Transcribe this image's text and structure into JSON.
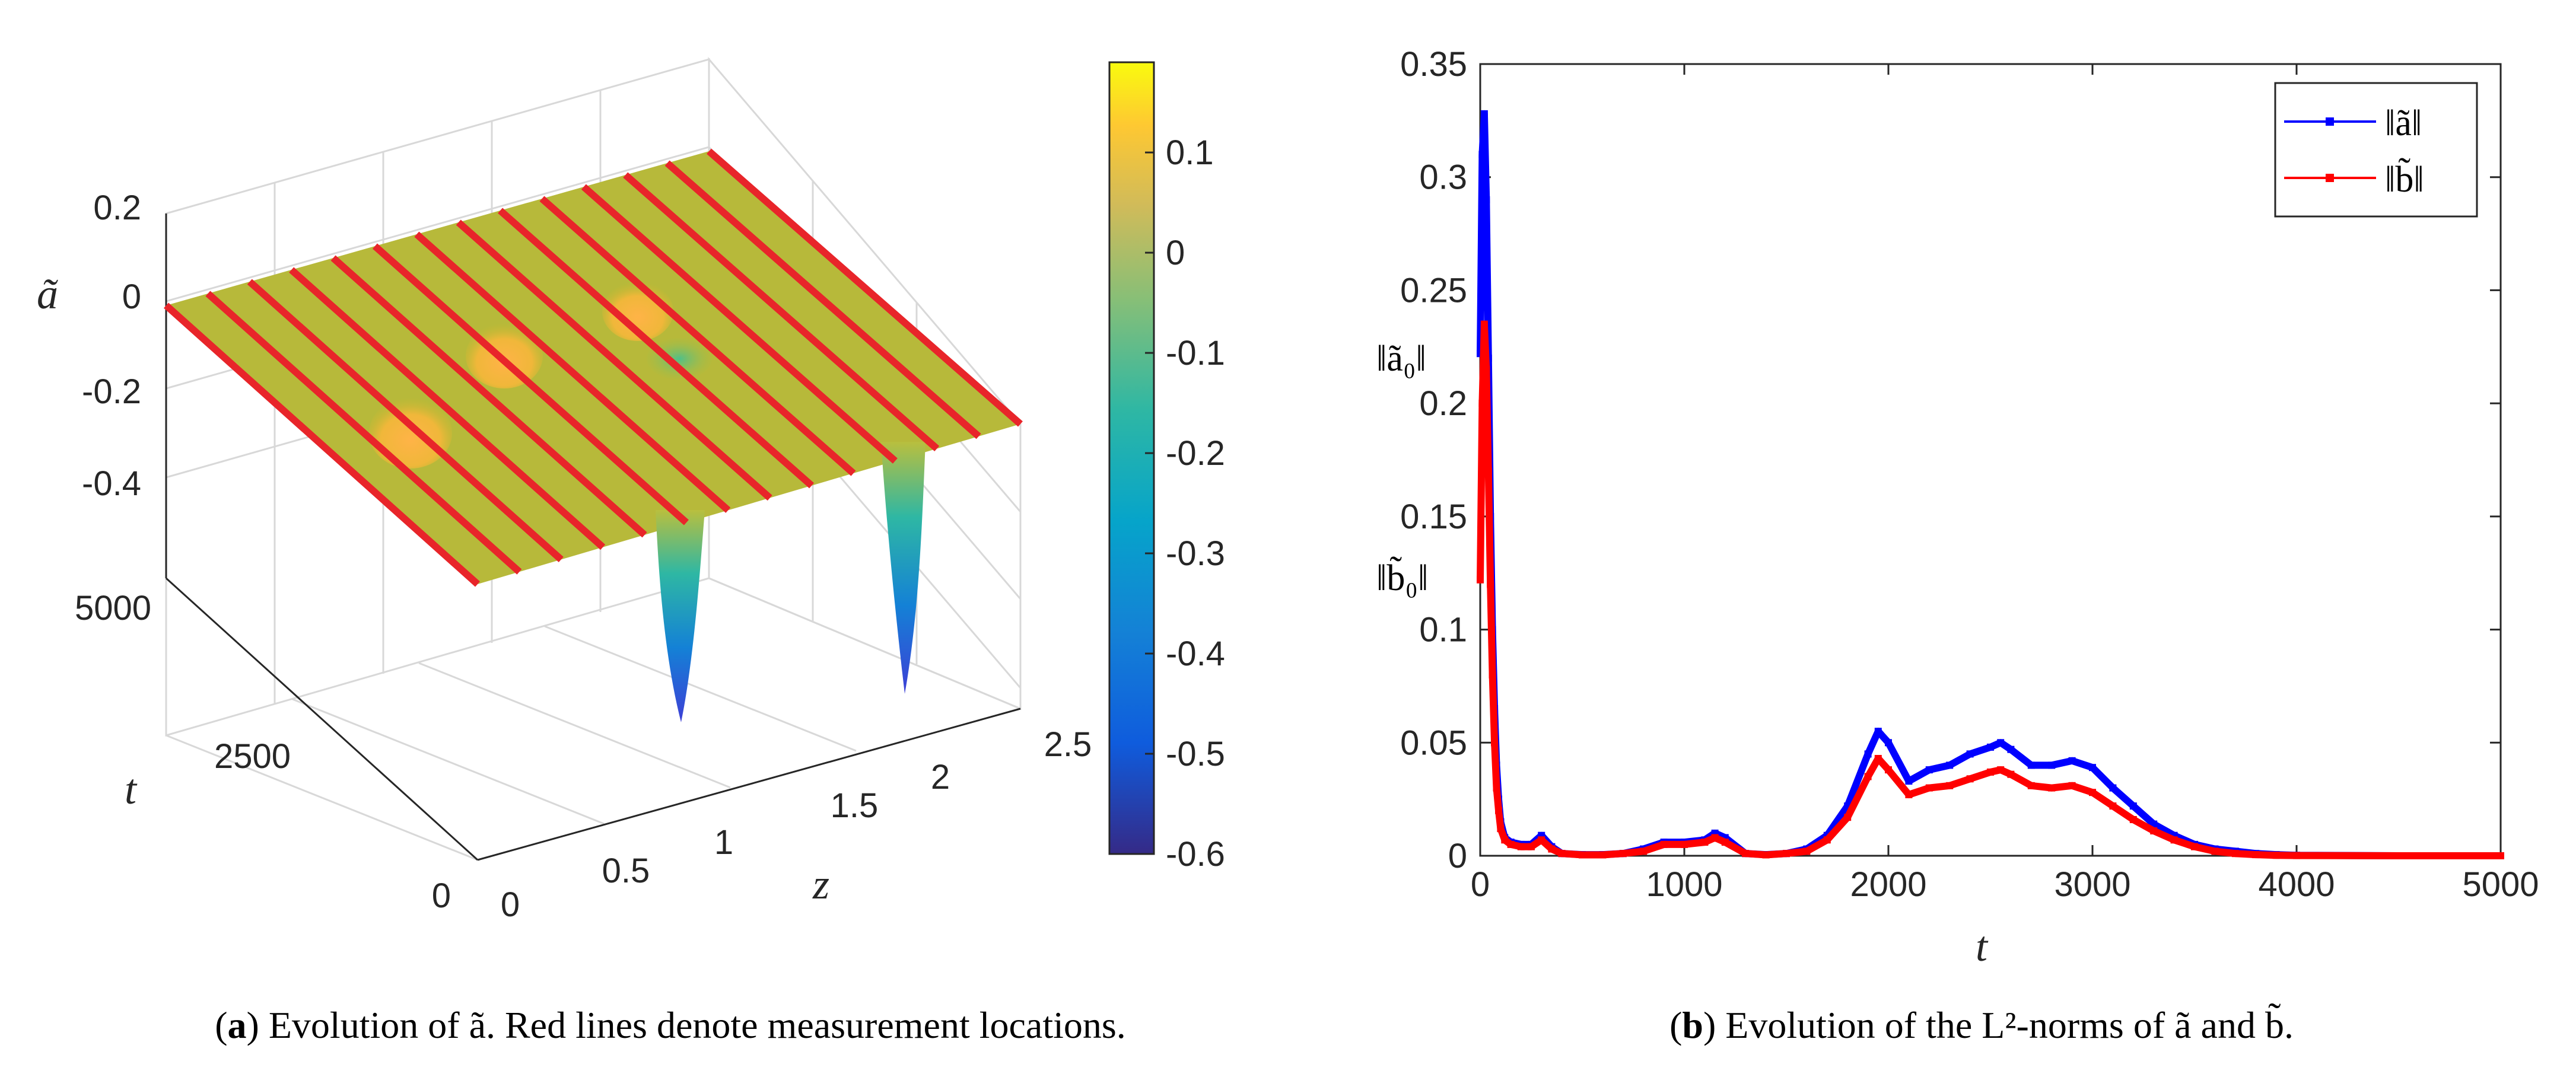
{
  "chart_data": [
    {
      "type": "surface3d",
      "panel": "a",
      "caption_label": "a",
      "caption_text": "Evolution of ã. Red lines denote measurement locations.",
      "zlabel": "ã",
      "xlabel": "z",
      "ylabel": "t",
      "z_ticks": [
        "0.2",
        "0",
        "-0.2",
        "-0.4"
      ],
      "x_ticks": [
        "0",
        "0.5",
        "1",
        "1.5",
        "2",
        "2.5"
      ],
      "t_ticks": [
        "0",
        "2500",
        "5000"
      ],
      "zlim": [
        -0.6,
        0.2
      ],
      "xlim": [
        0,
        2.5
      ],
      "tlim": [
        0,
        5000
      ],
      "measurement_lines": 14,
      "colorbar": {
        "ticks": [
          "0.1",
          "0",
          "-0.1",
          "-0.2",
          "-0.3",
          "-0.4",
          "-0.5",
          "-0.6"
        ],
        "range": [
          -0.6,
          0.19
        ],
        "colormap": "parula"
      }
    },
    {
      "type": "line",
      "panel": "b",
      "caption_label": "b",
      "caption_text": "Evolution of the L²-norms of ã and b̃.",
      "xlabel": "t",
      "xlim": [
        0,
        5000
      ],
      "ylim": [
        0,
        0.35
      ],
      "x_ticks": [
        "0",
        "1000",
        "2000",
        "3000",
        "4000",
        "5000"
      ],
      "y_ticks": [
        "0",
        "0.05",
        "0.1",
        "0.15",
        "0.2",
        "0.25",
        "0.3",
        "0.35"
      ],
      "annotations": [
        {
          "text": "‖ã₀‖",
          "y": 0.222,
          "color": "#0000ff"
        },
        {
          "text": "‖b̃₀‖",
          "y": 0.122,
          "color": "#ff0000"
        }
      ],
      "series": [
        {
          "name": "‖ã‖",
          "color": "#0000ff",
          "x": [
            0,
            10,
            20,
            30,
            40,
            50,
            60,
            70,
            80,
            90,
            100,
            120,
            150,
            200,
            250,
            300,
            350,
            400,
            500,
            600,
            700,
            800,
            900,
            1000,
            1100,
            1150,
            1200,
            1300,
            1400,
            1500,
            1600,
            1700,
            1800,
            1900,
            1950,
            2000,
            2100,
            2200,
            2300,
            2400,
            2500,
            2550,
            2600,
            2700,
            2800,
            2900,
            3000,
            3100,
            3200,
            3300,
            3400,
            3500,
            3600,
            3700,
            3800,
            3900,
            4000,
            4500,
            5000
          ],
          "values": [
            0.222,
            0.31,
            0.328,
            0.29,
            0.22,
            0.15,
            0.1,
            0.065,
            0.04,
            0.025,
            0.015,
            0.008,
            0.006,
            0.005,
            0.005,
            0.009,
            0.004,
            0.001,
            0.0005,
            0.0005,
            0.001,
            0.003,
            0.006,
            0.006,
            0.007,
            0.01,
            0.008,
            0.001,
            0.0005,
            0.001,
            0.003,
            0.009,
            0.022,
            0.045,
            0.055,
            0.05,
            0.033,
            0.038,
            0.04,
            0.045,
            0.048,
            0.05,
            0.047,
            0.04,
            0.04,
            0.042,
            0.039,
            0.03,
            0.022,
            0.014,
            0.009,
            0.005,
            0.003,
            0.002,
            0.001,
            0.0005,
            0.0002,
            0,
            0
          ]
        },
        {
          "name": "‖b̃‖",
          "color": "#ff0000",
          "x": [
            0,
            10,
            20,
            30,
            40,
            50,
            60,
            70,
            80,
            90,
            100,
            120,
            150,
            200,
            250,
            300,
            350,
            400,
            500,
            600,
            700,
            800,
            900,
            1000,
            1100,
            1150,
            1200,
            1300,
            1400,
            1500,
            1600,
            1700,
            1800,
            1900,
            1950,
            2000,
            2100,
            2200,
            2300,
            2400,
            2500,
            2550,
            2600,
            2700,
            2800,
            2900,
            3000,
            3100,
            3200,
            3300,
            3400,
            3500,
            3600,
            3700,
            3800,
            3900,
            4000,
            4500,
            5000
          ],
          "values": [
            0.122,
            0.2,
            0.235,
            0.215,
            0.17,
            0.12,
            0.08,
            0.05,
            0.03,
            0.02,
            0.012,
            0.007,
            0.005,
            0.004,
            0.004,
            0.007,
            0.003,
            0.001,
            0.0004,
            0.0004,
            0.001,
            0.002,
            0.005,
            0.005,
            0.006,
            0.008,
            0.006,
            0.001,
            0.0004,
            0.001,
            0.002,
            0.007,
            0.017,
            0.035,
            0.043,
            0.038,
            0.027,
            0.03,
            0.031,
            0.034,
            0.037,
            0.038,
            0.036,
            0.031,
            0.03,
            0.031,
            0.028,
            0.022,
            0.016,
            0.011,
            0.007,
            0.004,
            0.002,
            0.001,
            0.0005,
            0.0002,
            0.0001,
            0,
            0
          ]
        }
      ]
    }
  ]
}
